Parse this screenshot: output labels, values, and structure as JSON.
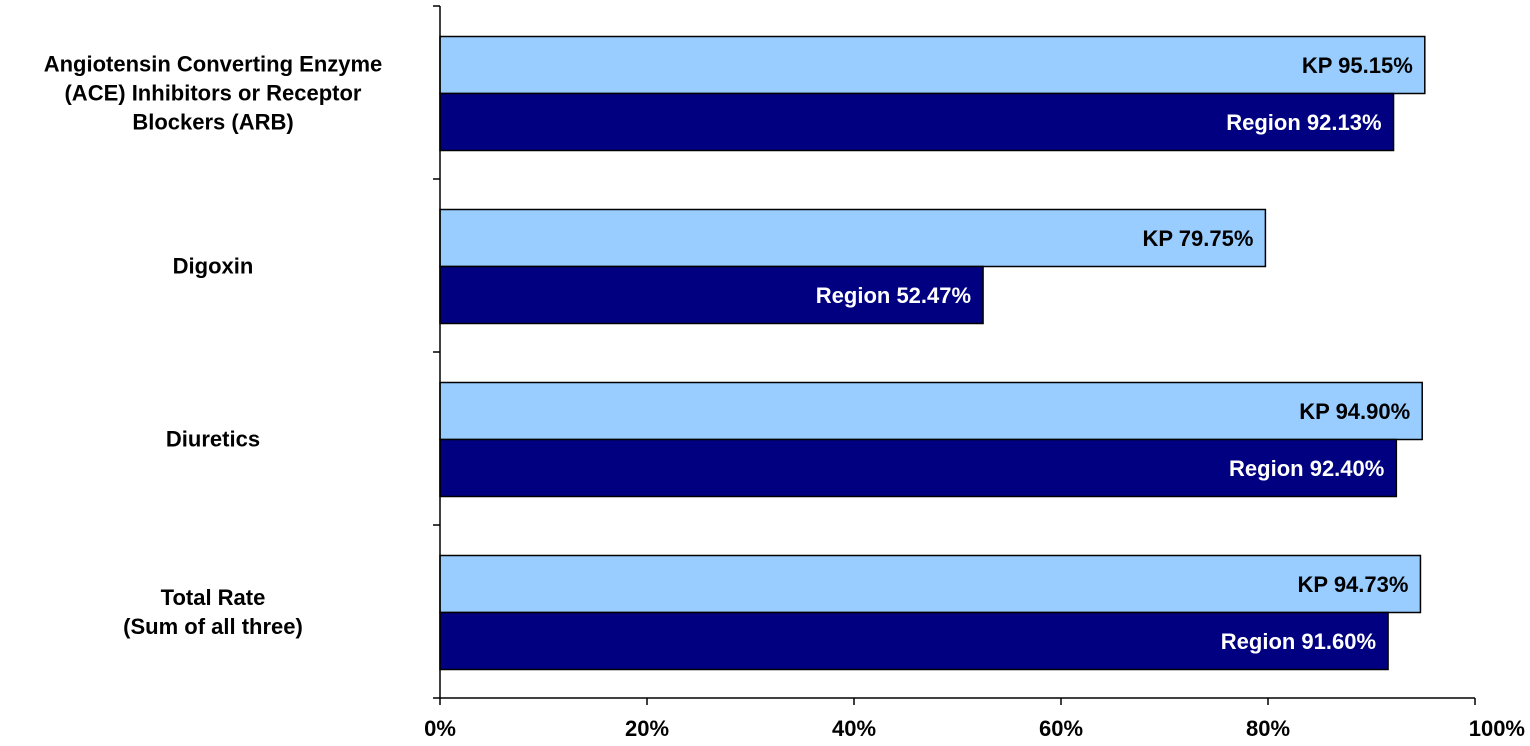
{
  "chart_data": {
    "type": "bar",
    "orientation": "horizontal",
    "categories": [
      [
        "Angiotensin Converting Enzyme",
        "(ACE) Inhibitors or Receptor",
        "Blockers (ARB)"
      ],
      [
        "Digoxin"
      ],
      [
        "Diuretics"
      ],
      [
        "Total Rate",
        "(Sum of all three)"
      ]
    ],
    "series": [
      {
        "values": [
          95.15,
          79.75,
          94.9,
          94.73
        ],
        "labels": [
          "KP 95.15%",
          "KP 79.75%",
          "KP 94.90%",
          "KP 94.73%"
        ],
        "color": "#99ccff",
        "label_color": "#000000"
      },
      {
        "values": [
          92.13,
          52.47,
          92.4,
          91.6
        ],
        "labels": [
          "Region 92.13%",
          "Region 52.47%",
          "Region 92.40%",
          "Region 91.60%"
        ],
        "color": "#000080",
        "label_color": "#ffffff"
      }
    ],
    "xlim": [
      0,
      100
    ],
    "xticks": [
      0,
      20,
      40,
      60,
      80,
      100
    ],
    "xtick_labels": [
      "0%",
      "20%",
      "40%",
      "60%",
      "80%",
      "100%"
    ],
    "grid": false,
    "legend": "none"
  }
}
